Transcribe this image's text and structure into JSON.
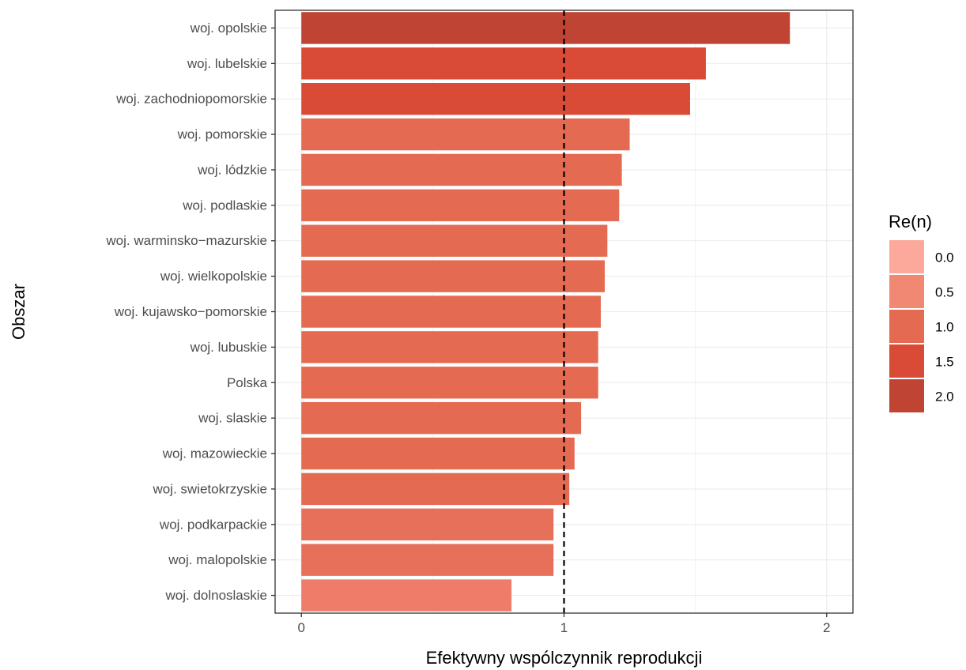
{
  "chart_data": {
    "type": "bar",
    "orientation": "horizontal",
    "categories": [
      "woj. opolskie",
      "woj. lubelskie",
      "woj. zachodniopomorskie",
      "woj. pomorskie",
      "woj. lódzkie",
      "woj. podlaskie",
      "woj. warminsko−mazurskie",
      "woj. wielkopolskie",
      "woj. kujawsko−pomorskie",
      "woj. lubuskie",
      "Polska",
      "woj. slaskie",
      "woj. mazowieckie",
      "woj. swietokrzyskie",
      "woj. podkarpackie",
      "woj. malopolskie",
      "woj. dolnoslaskie"
    ],
    "values": [
      1.86,
      1.54,
      1.48,
      1.25,
      1.22,
      1.21,
      1.165,
      1.155,
      1.14,
      1.13,
      1.13,
      1.065,
      1.04,
      1.02,
      0.96,
      0.96,
      0.8
    ],
    "xlabel": "Efektywny wspólczynnik reprodukcji",
    "ylabel": "Obszar",
    "xlim": [
      -0.1,
      2.1
    ],
    "xticks": [
      "0",
      "1",
      "2"
    ],
    "xtick_values": [
      0,
      1,
      2
    ],
    "reference_line": {
      "x": 1,
      "style": "dashed",
      "color": "#000000"
    },
    "grid": true,
    "legend": {
      "title": "Re(n)",
      "position": "right",
      "entries": [
        {
          "label": "0.0",
          "color": "#fca89a"
        },
        {
          "label": "0.5",
          "color": "#f08874"
        },
        {
          "label": "1.0",
          "color": "#e46a52"
        },
        {
          "label": "1.5",
          "color": "#d94b36"
        },
        {
          "label": "2.0",
          "color": "#c04434"
        }
      ]
    },
    "bar_colors": [
      "#c04434",
      "#d94b36",
      "#d94b36",
      "#e46a52",
      "#e46a52",
      "#e46a52",
      "#e46a52",
      "#e46a52",
      "#e46a52",
      "#e46a52",
      "#e46a52",
      "#e46a52",
      "#e46a52",
      "#e46a52",
      "#e7705a",
      "#e7705a",
      "#ee7c68"
    ],
    "colors": {
      "panel_border": "#333333",
      "grid": "#ebebeb",
      "tick_text": "#4d4d4d"
    }
  }
}
